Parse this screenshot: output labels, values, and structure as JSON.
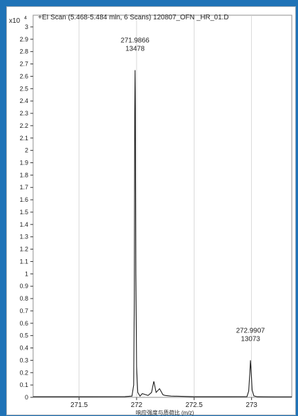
{
  "header": {
    "title": "+EI Scan (5.468-5.484 min, 6 Scans) 120807_OFN _HR_01.D",
    "y_multiplier": "x10",
    "y_multiplier_exp": "4"
  },
  "chart_data": {
    "type": "line",
    "title": "+EI Scan (5.468-5.484 min, 6 Scans) 120807_OFN _HR_01.D",
    "xlabel": "响应强度与质荷比 (m/z)",
    "ylabel": "",
    "xlim": [
      271.1,
      273.35
    ],
    "ylim": [
      0,
      3.05
    ],
    "x_ticks": [
      271.5,
      272,
      272.5,
      273
    ],
    "x_tick_labels": [
      "271.5",
      "272",
      "272.5",
      "273"
    ],
    "y_ticks": [
      0,
      0.1,
      0.2,
      0.3,
      0.4,
      0.5,
      0.6,
      0.7,
      0.8,
      0.9,
      1,
      1.1,
      1.2,
      1.3,
      1.4,
      1.5,
      1.6,
      1.7,
      1.8,
      1.9,
      2,
      2.1,
      2.2,
      2.3,
      2.4,
      2.5,
      2.6,
      2.7,
      2.8,
      2.9,
      3
    ],
    "y_tick_labels": [
      "0",
      "0.1",
      "0.2",
      "0.3",
      "0.4",
      "0.5",
      "0.6",
      "0.7",
      "0.8",
      "0.9",
      "1",
      "1.1",
      "1.2",
      "1.3",
      "1.4",
      "1.5",
      "1.6",
      "1.7",
      "1.8",
      "1.9",
      "2",
      "2.1",
      "2.2",
      "2.3",
      "2.4",
      "2.5",
      "2.6",
      "2.7",
      "2.8",
      "2.9",
      "3"
    ],
    "series": [
      {
        "x": [
          271.1,
          271.6,
          271.9,
          271.96,
          271.975,
          271.98,
          271.984,
          271.9866,
          271.989,
          271.993,
          272.0,
          272.01,
          272.03,
          272.05,
          272.1,
          272.13,
          272.15,
          272.17,
          272.2,
          272.23,
          272.25,
          272.3,
          272.5,
          272.8,
          272.96,
          272.975,
          272.985,
          272.9907,
          272.996,
          273.005,
          273.02,
          273.05,
          273.2,
          273.35
        ],
        "y": [
          0.005,
          0.005,
          0.006,
          0.01,
          0.1,
          0.8,
          2.3,
          2.65,
          2.35,
          1.0,
          0.25,
          0.04,
          0.01,
          0.03,
          0.015,
          0.04,
          0.13,
          0.04,
          0.07,
          0.02,
          0.015,
          0.01,
          0.005,
          0.005,
          0.006,
          0.05,
          0.2,
          0.3,
          0.22,
          0.06,
          0.012,
          0.005,
          0.004,
          0.004
        ]
      }
    ],
    "annotations": [
      {
        "x": 271.9866,
        "mz_label": "271.9866",
        "abundance_label": "13478",
        "y": 2.65
      },
      {
        "x": 272.9907,
        "mz_label": "272.9907",
        "abundance_label": "13073",
        "y": 0.3
      }
    ],
    "colors": {
      "line": "#1a1a1a",
      "background": "#1f73b7",
      "grid": "#cfcfcf"
    }
  }
}
